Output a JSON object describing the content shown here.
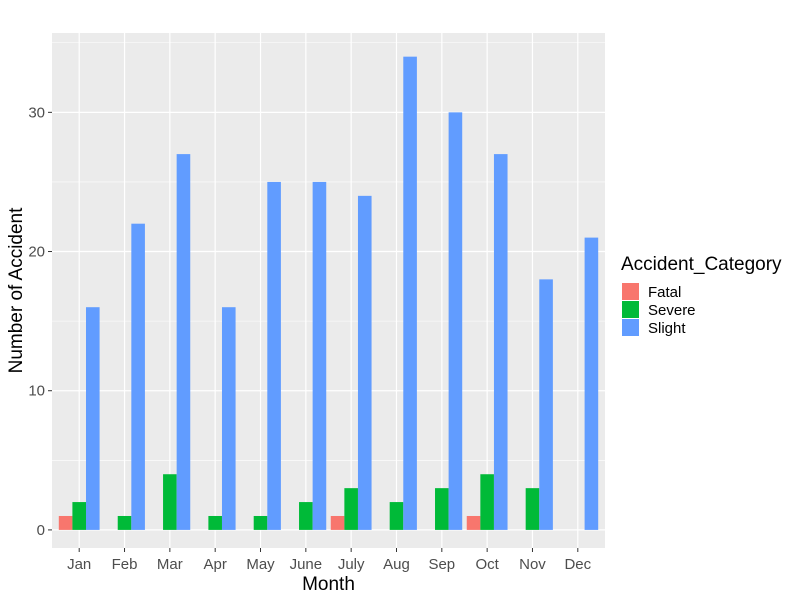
{
  "chart_data": {
    "type": "bar",
    "title": "",
    "xlabel": "Month",
    "ylabel": "Number of Accident",
    "categories": [
      "Jan",
      "Feb",
      "Mar",
      "Apr",
      "May",
      "June",
      "July",
      "Aug",
      "Sep",
      "Oct",
      "Nov",
      "Dec"
    ],
    "ylim": [
      -1.3,
      35.7
    ],
    "yticks": [
      0,
      10,
      20,
      30
    ],
    "ytick_labels": [
      "0",
      "10",
      "20",
      "30"
    ],
    "grid": true,
    "legend": {
      "title": "Accident_Category",
      "position": "right"
    },
    "series": [
      {
        "name": "Fatal",
        "color": "#F8766D",
        "values": [
          1,
          null,
          null,
          null,
          null,
          null,
          1,
          null,
          null,
          1,
          null,
          null
        ]
      },
      {
        "name": "Severe",
        "color": "#00BA38",
        "values": [
          2,
          1,
          4,
          1,
          1,
          2,
          3,
          2,
          3,
          4,
          3,
          null
        ]
      },
      {
        "name": "Slight",
        "color": "#619CFF",
        "values": [
          16,
          22,
          27,
          16,
          25,
          25,
          24,
          34,
          30,
          27,
          18,
          21
        ]
      }
    ]
  }
}
